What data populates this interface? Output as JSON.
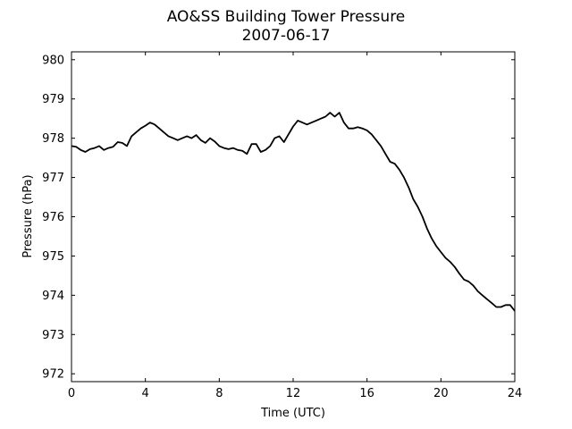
{
  "chart_data": {
    "type": "line",
    "title": "AO&SS Building Tower Pressure",
    "subtitle": "2007-06-17",
    "xlabel": "Time (UTC)",
    "ylabel": "Pressure (hPa)",
    "xlim": [
      0,
      24
    ],
    "ylim": [
      971.8,
      980.2
    ],
    "xticks": [
      0,
      4,
      8,
      12,
      16,
      20,
      24
    ],
    "xtick_labels": [
      "0",
      "4",
      "8",
      "12",
      "16",
      "20",
      "24"
    ],
    "yticks": [
      972,
      973,
      974,
      975,
      976,
      977,
      978,
      979,
      980
    ],
    "ytick_labels": [
      "972",
      "973",
      "974",
      "975",
      "976",
      "977",
      "978",
      "979",
      "980"
    ],
    "grid": false,
    "line_color": "#000000",
    "series": [
      {
        "x": [
          0,
          0.25,
          0.5,
          0.75,
          1.0,
          1.25,
          1.5,
          1.75,
          2.0,
          2.25,
          2.5,
          2.75,
          3.0,
          3.25,
          3.5,
          3.75,
          4.0,
          4.25,
          4.5,
          4.75,
          5.0,
          5.25,
          5.5,
          5.75,
          6.0,
          6.25,
          6.5,
          6.75,
          7.0,
          7.25,
          7.5,
          7.75,
          8.0,
          8.25,
          8.5,
          8.75,
          9.0,
          9.25,
          9.5,
          9.75,
          10.0,
          10.25,
          10.5,
          10.75,
          11.0,
          11.25,
          11.5,
          11.75,
          12.0,
          12.25,
          12.5,
          12.75,
          13.0,
          13.25,
          13.5,
          13.75,
          14.0,
          14.25,
          14.5,
          14.75,
          15.0,
          15.25,
          15.5,
          15.75,
          16.0,
          16.25,
          16.5,
          16.75,
          17.0,
          17.25,
          17.5,
          17.75,
          18.0,
          18.25,
          18.5,
          18.75,
          19.0,
          19.25,
          19.5,
          19.75,
          20.0,
          20.25,
          20.5,
          20.75,
          21.0,
          21.25,
          21.5,
          21.75,
          22.0,
          22.25,
          22.5,
          22.75,
          23.0,
          23.25,
          23.5,
          23.75,
          24.0
        ],
        "values": [
          977.8,
          977.78,
          977.7,
          977.65,
          977.72,
          977.75,
          977.8,
          977.7,
          977.75,
          977.78,
          977.9,
          977.88,
          977.8,
          978.05,
          978.15,
          978.25,
          978.32,
          978.4,
          978.35,
          978.25,
          978.15,
          978.05,
          978.0,
          977.95,
          978.0,
          978.05,
          978.0,
          978.08,
          977.95,
          977.88,
          978.0,
          977.92,
          977.8,
          977.75,
          977.72,
          977.75,
          977.7,
          977.68,
          977.6,
          977.85,
          977.85,
          977.65,
          977.7,
          977.8,
          978.0,
          978.05,
          977.9,
          978.1,
          978.3,
          978.45,
          978.4,
          978.35,
          978.4,
          978.45,
          978.5,
          978.55,
          978.65,
          978.55,
          978.65,
          978.4,
          978.25,
          978.25,
          978.28,
          978.25,
          978.2,
          978.1,
          977.95,
          977.8,
          977.6,
          977.4,
          977.35,
          977.2,
          977.0,
          976.75,
          976.45,
          976.25,
          976.0,
          975.7,
          975.45,
          975.25,
          975.1,
          974.95,
          974.85,
          974.72,
          974.55,
          974.4,
          974.35,
          974.25,
          974.1,
          974.0,
          973.9,
          973.8,
          973.7,
          973.7,
          973.75,
          973.75,
          973.6
        ]
      }
    ]
  }
}
